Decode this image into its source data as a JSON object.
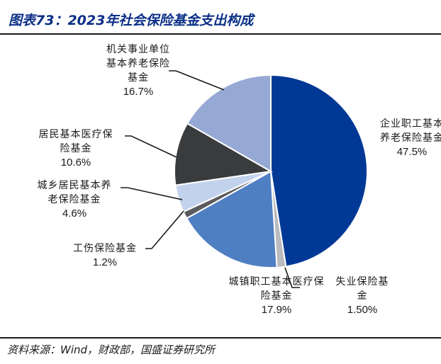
{
  "header": {
    "title": "图表73：2023年社会保险基金支出构成"
  },
  "footer": {
    "source": "资料来源：Wind，财政部，国盛证券研究所"
  },
  "chart_data": {
    "type": "pie",
    "title": "2023年社会保险基金支出构成",
    "slices": [
      {
        "name_lines": [
          "企业职工基本",
          "养老保险基金"
        ],
        "label": "企业职工基本养老保险基金",
        "value": 47.5,
        "value_label": "47.5%",
        "color": "#003896"
      },
      {
        "name_lines": [
          "失业保险基",
          "金"
        ],
        "label": "失业保险基金",
        "value": 1.5,
        "value_label": "1.50%",
        "color": "#b9bbbf"
      },
      {
        "name_lines": [
          "城镇职工基本医疗保",
          "险基金"
        ],
        "label": "城镇职工基本医疗保险基金",
        "value": 17.9,
        "value_label": "17.9%",
        "color": "#4f7fc3"
      },
      {
        "name_lines": [
          "工伤保险基金"
        ],
        "label": "工伤保险基金",
        "value": 1.2,
        "value_label": "1.2%",
        "color": "#5a5b5e"
      },
      {
        "name_lines": [
          "城乡居民基本养",
          "老保险基金"
        ],
        "label": "城乡居民基本养老保险基金",
        "value": 4.6,
        "value_label": "4.6%",
        "color": "#c3d2ec"
      },
      {
        "name_lines": [
          "居民基本医疗保",
          "险基金"
        ],
        "label": "居民基本医疗保险基金",
        "value": 10.6,
        "value_label": "10.6%",
        "color": "#3a3b3d"
      },
      {
        "name_lines": [
          "机关事业单位",
          "基本养老保险",
          "基金"
        ],
        "label": "机关事业单位基本养老保险基金",
        "value": 16.7,
        "value_label": "16.7%",
        "color": "#96a9d4"
      }
    ]
  }
}
